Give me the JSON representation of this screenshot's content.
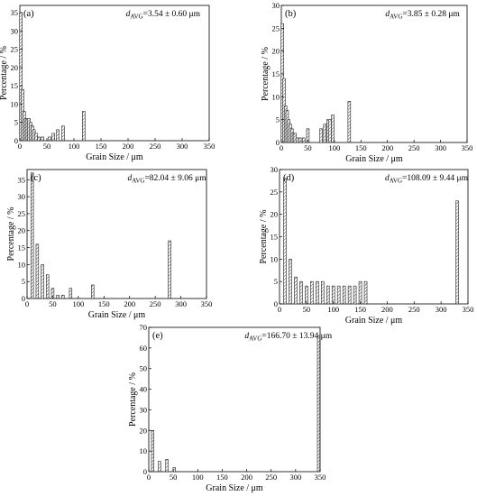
{
  "figure": {
    "bin_width": 5,
    "chart_data": [
      {
        "type": "bar",
        "panel_label": "(a)",
        "annotation": {
          "symbol": "d",
          "subscript": "AVG",
          "value": "=3.54 ±  0.60 μm"
        },
        "xlabel": "Grain Size / μm",
        "ylabel": "Percentage / %",
        "xlim": [
          0,
          350
        ],
        "ylim": [
          0,
          37
        ],
        "xticks": [
          0,
          50,
          100,
          150,
          200,
          250,
          300,
          350
        ],
        "yticks": [
          0,
          5,
          10,
          15,
          20,
          25,
          30,
          35
        ],
        "x": [
          2,
          5,
          8,
          11,
          14,
          17,
          20,
          23,
          26,
          30,
          35,
          42,
          55,
          62,
          70,
          80,
          118
        ],
        "values": [
          35,
          14,
          8,
          6,
          6,
          6,
          5,
          4,
          3,
          2,
          1,
          1,
          1,
          2,
          3,
          4,
          8
        ]
      },
      {
        "type": "bar",
        "panel_label": "(b)",
        "annotation": {
          "symbol": "d",
          "subscript": "AVG",
          "value": "=3.85 ±  0.28 μm"
        },
        "xlabel": "Grain Size / μm",
        "ylabel": "Percentage / %",
        "xlim": [
          0,
          350
        ],
        "ylim": [
          0,
          30
        ],
        "xticks": [
          0,
          50,
          100,
          150,
          200,
          250,
          300,
          350
        ],
        "yticks": [
          0,
          5,
          10,
          15,
          20,
          25,
          30
        ],
        "x": [
          2,
          5,
          8,
          11,
          14,
          17,
          20,
          23,
          26,
          30,
          35,
          42,
          50,
          75,
          82,
          88,
          92,
          97,
          128
        ],
        "values": [
          26,
          14,
          8,
          7,
          5,
          4,
          3,
          2,
          2,
          1,
          1,
          1,
          3,
          3,
          4,
          5,
          5,
          6,
          9
        ]
      },
      {
        "type": "bar",
        "panel_label": "(c)",
        "annotation": {
          "symbol": "d",
          "subscript": "AVG",
          "value": "=82.04 ±  9.06 μm"
        },
        "xlabel": "Grain Size / μm",
        "ylabel": "Percentage / %",
        "xlim": [
          0,
          350
        ],
        "ylim": [
          0,
          38
        ],
        "xticks": [
          0,
          50,
          100,
          150,
          200,
          250,
          300,
          350
        ],
        "yticks": [
          0,
          5,
          10,
          15,
          20,
          25,
          30,
          35
        ],
        "x": [
          10,
          20,
          30,
          40,
          50,
          60,
          70,
          85,
          128,
          278
        ],
        "values": [
          37,
          16,
          10,
          7,
          3,
          1,
          1,
          3,
          4,
          17
        ]
      },
      {
        "type": "bar",
        "panel_label": "(d)",
        "annotation": {
          "symbol": "d",
          "subscript": "AVG",
          "value": "=108.09 ±  9.44 μm"
        },
        "xlabel": "Grain Size / μm",
        "ylabel": "Percentage / %",
        "xlim": [
          0,
          350
        ],
        "ylim": [
          0,
          30
        ],
        "xticks": [
          0,
          50,
          100,
          150,
          200,
          250,
          300,
          350
        ],
        "yticks": [
          0,
          5,
          10,
          15,
          20,
          25,
          30
        ],
        "x": [
          10,
          20,
          30,
          40,
          50,
          60,
          70,
          80,
          90,
          100,
          110,
          120,
          130,
          140,
          150,
          160,
          330
        ],
        "values": [
          28,
          10,
          6,
          5,
          4,
          5,
          5,
          5,
          4,
          4,
          4,
          4,
          4,
          4,
          5,
          5,
          23
        ]
      },
      {
        "type": "bar",
        "panel_label": "(e)",
        "annotation": {
          "symbol": "d",
          "subscript": "AVG",
          "value": "=166.70 ±  13.94 μm"
        },
        "xlabel": "Grain Size / μm",
        "ylabel": "Percentage / %",
        "xlim": [
          0,
          350
        ],
        "ylim": [
          0,
          70
        ],
        "xticks": [
          0,
          50,
          100,
          150,
          200,
          250,
          300,
          350
        ],
        "yticks": [
          0,
          10,
          20,
          30,
          40,
          50,
          60,
          70
        ],
        "x": [
          8,
          22,
          37,
          52,
          347
        ],
        "values": [
          20,
          5,
          6,
          2,
          66
        ]
      }
    ]
  }
}
